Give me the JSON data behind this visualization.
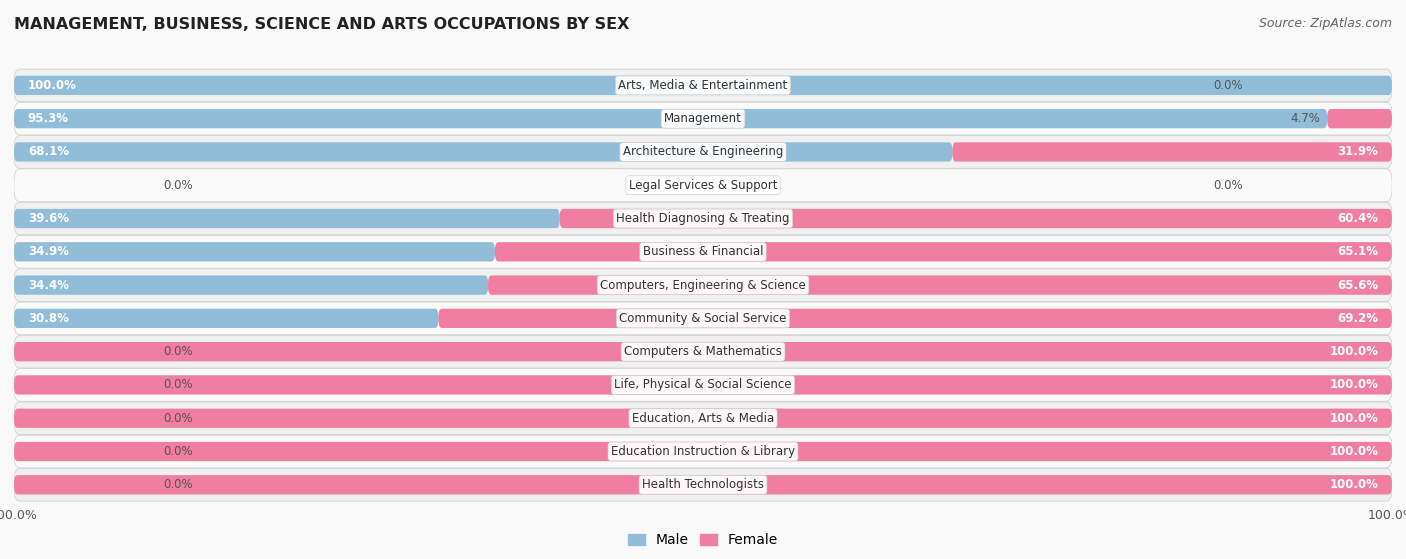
{
  "title": "MANAGEMENT, BUSINESS, SCIENCE AND ARTS OCCUPATIONS BY SEX",
  "source": "Source: ZipAtlas.com",
  "categories": [
    "Arts, Media & Entertainment",
    "Management",
    "Architecture & Engineering",
    "Legal Services & Support",
    "Health Diagnosing & Treating",
    "Business & Financial",
    "Computers, Engineering & Science",
    "Community & Social Service",
    "Computers & Mathematics",
    "Life, Physical & Social Science",
    "Education, Arts & Media",
    "Education Instruction & Library",
    "Health Technologists"
  ],
  "male": [
    100.0,
    95.3,
    68.1,
    0.0,
    39.6,
    34.9,
    34.4,
    30.8,
    0.0,
    0.0,
    0.0,
    0.0,
    0.0
  ],
  "female": [
    0.0,
    4.7,
    31.9,
    0.0,
    60.4,
    65.1,
    65.6,
    69.2,
    100.0,
    100.0,
    100.0,
    100.0,
    100.0
  ],
  "male_color": "#92BDD8",
  "female_color": "#F07EA0",
  "row_bg_even": "#f0f0f0",
  "row_bg_odd": "#fafafa",
  "bar_height": 0.58,
  "total_width": 100.0,
  "legend_male": "Male",
  "legend_female": "Female",
  "label_inside_color": "white",
  "label_outside_color": "#555555",
  "center_label_color": "#333333"
}
